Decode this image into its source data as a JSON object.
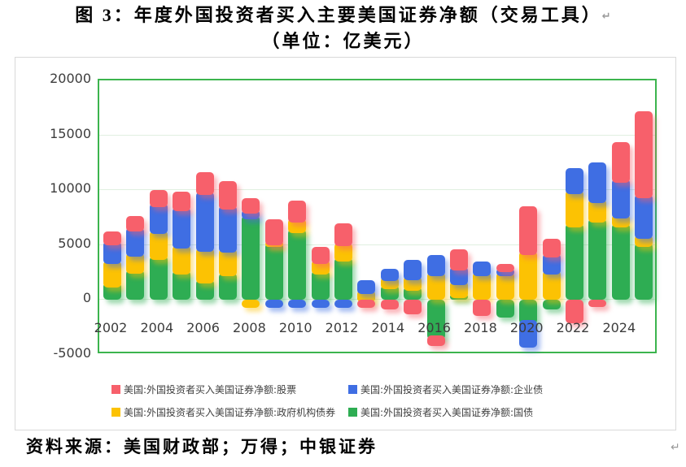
{
  "page": {
    "title_line1": "图 3：年度外国投资者买入主要美国证券净额（交易工具）",
    "title_line2": "（单位：亿美元）",
    "return_mark": "↵",
    "source_note": "资料来源：美国财政部；万得；中银证券"
  },
  "legend": {
    "rows": [
      [
        {
          "id": "equities",
          "label": "美国:外国投资者买入美国证券净额:股票",
          "color": "#f7606b"
        },
        {
          "id": "corporate-bonds",
          "label": "美国:外国投资者买入美国证券净额:企业债",
          "color": "#3f6ee3"
        }
      ],
      [
        {
          "id": "agency-bonds",
          "label": "美国:外国投资者买入美国证券净额:政府机构债券",
          "color": "#fcc203"
        },
        {
          "id": "treasuries",
          "label": "美国:外国投资者买入美国证券净额:国债",
          "color": "#2ead53"
        }
      ]
    ]
  },
  "chart_data": {
    "type": "bar",
    "stacked": true,
    "title": "图 3：年度外国投资者买入主要美国证券净额（交易工具）",
    "subtitle": "（单位：亿美元）",
    "unit": "亿美元",
    "ylim": [
      -5000,
      20000
    ],
    "y_ticks": [
      20000,
      15000,
      10000,
      5000,
      0,
      -5000
    ],
    "grid": true,
    "legend_position": "bottom",
    "categories": [
      2002,
      2003,
      2004,
      2005,
      2006,
      2007,
      2008,
      2009,
      2010,
      2011,
      2012,
      2013,
      2014,
      2015,
      2016,
      2017,
      2018,
      2019,
      2020,
      2021,
      2022,
      2023,
      2024,
      2025
    ],
    "x_tick_labels": [
      "2002",
      "2004",
      "2006",
      "2008",
      "2010",
      "2012",
      "2014",
      "2016",
      "2018",
      "2020",
      "2022",
      "2024"
    ],
    "series": [
      {
        "id": "treasuries",
        "name": "美国:外国投资者买入美国证券净额:国债",
        "color": "#2ead53",
        "values": [
          1550,
          2800,
          4060,
          2660,
          1850,
          2510,
          7750,
          5240,
          6490,
          2730,
          3910,
          200,
          1330,
          1180,
          -3620,
          520,
          0,
          -1620,
          -2210,
          -890,
          7010,
          7450,
          7010,
          5240
        ]
      },
      {
        "id": "agency-bonds",
        "name": "美国:外国投资者买入美国证券净额:政府机构债券",
        "color": "#fcc203",
        "values": [
          2070,
          1550,
          2290,
          2360,
          2950,
          2210,
          -740,
          100,
          960,
          960,
          1330,
          740,
          740,
          1030,
          2580,
          1180,
          2580,
          2580,
          4500,
          2660,
          3030,
          1770,
          810,
          740
        ]
      },
      {
        "id": "corporate-bonds",
        "name": "美国:外国投资者买入美国证券净额:企业债",
        "color": "#3f6ee3",
        "values": [
          1770,
          2290,
          2510,
          3470,
          5100,
          3910,
          520,
          -740,
          -740,
          -740,
          -740,
          890,
          740,
          1480,
          1550,
          1330,
          960,
          370,
          -2140,
          1620,
          1990,
          3320,
          3250,
          3690
        ]
      },
      {
        "id": "equities",
        "name": "美国:外国投资者买入美国证券净额:股票",
        "color": "#f7606b",
        "values": [
          890,
          1030,
          1180,
          1400,
          1770,
          2210,
          1030,
          1990,
          1620,
          1180,
          1770,
          -740,
          -890,
          -1330,
          -590,
          1620,
          -1480,
          370,
          4060,
          1330,
          -2140,
          -660,
          3320,
          7530
        ]
      }
    ]
  }
}
